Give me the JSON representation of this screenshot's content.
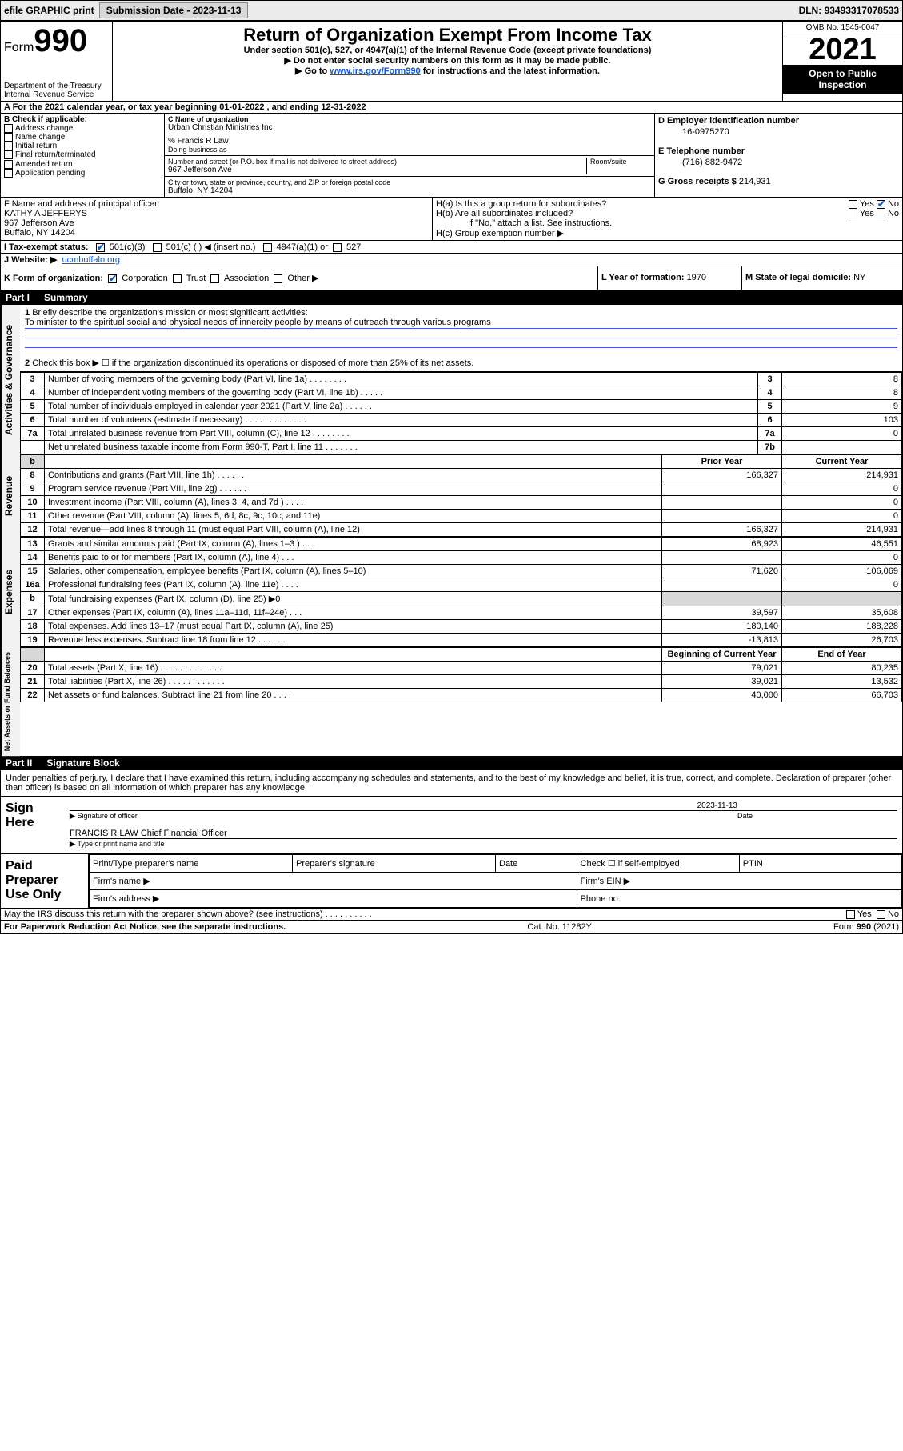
{
  "toolbar": {
    "efile": "efile GRAPHIC print",
    "submission_label": "Submission Date - ",
    "submission_date": "2023-11-13",
    "dln_label": "DLN: ",
    "dln": "93493317078533"
  },
  "header": {
    "form_word": "Form",
    "form_num": "990",
    "title": "Return of Organization Exempt From Income Tax",
    "subtitle": "Under section 501(c), 527, or 4947(a)(1) of the Internal Revenue Code (except private foundations)",
    "note1": "▶ Do not enter social security numbers on this form as it may be made public.",
    "note2_pre": "▶ Go to ",
    "note2_link": "www.irs.gov/Form990",
    "note2_post": " for instructions and the latest information.",
    "dept": "Department of the Treasury",
    "irs": "Internal Revenue Service",
    "omb": "OMB No. 1545-0047",
    "year": "2021",
    "open": "Open to Public Inspection"
  },
  "a_line": "A For the 2021 calendar year, or tax year beginning 01-01-2022   , and ending 12-31-2022",
  "b": {
    "title": "B Check if applicable:",
    "opts": [
      "Address change",
      "Name change",
      "Initial return",
      "Final return/terminated",
      "Amended return",
      "Application pending"
    ]
  },
  "c": {
    "label": "C Name of organization",
    "name": "Urban Christian Ministries Inc",
    "care_of": "% Francis R Law",
    "dba_label": "Doing business as",
    "street_label": "Number and street (or P.O. box if mail is not delivered to street address)",
    "room_label": "Room/suite",
    "street": "967 Jefferson Ave",
    "city_label": "City or town, state or province, country, and ZIP or foreign postal code",
    "city": "Buffalo, NY  14204"
  },
  "d": {
    "label": "D Employer identification number",
    "value": "16-0975270"
  },
  "e": {
    "label": "E Telephone number",
    "value": "(716) 882-9472"
  },
  "g": {
    "label": "G Gross receipts $ ",
    "value": "214,931"
  },
  "f": {
    "label": "F Name and address of principal officer:",
    "name": "KATHY A JEFFERYS",
    "addr1": "967 Jefferson Ave",
    "addr2": "Buffalo, NY  14204"
  },
  "h": {
    "a": "H(a)  Is this a group return for subordinates?",
    "b": "H(b)  Are all subordinates included?",
    "b_note": "If \"No,\" attach a list. See instructions.",
    "c": "H(c)  Group exemption number ▶",
    "yes": "Yes",
    "no": "No"
  },
  "i": {
    "label": "I  Tax-exempt status:",
    "c3": "501(c)(3)",
    "c": "501(c) (   ) ◀ (insert no.)",
    "a1": "4947(a)(1) or",
    "s527": "527"
  },
  "j": {
    "label": "J  Website: ▶",
    "value": "ucmbuffalo.org"
  },
  "k": {
    "label": "K Form of organization:",
    "opts": [
      "Corporation",
      "Trust",
      "Association",
      "Other ▶"
    ]
  },
  "l": {
    "label": "L Year of formation: ",
    "value": "1970"
  },
  "m": {
    "label": "M State of legal domicile: ",
    "value": "NY"
  },
  "part1": {
    "id": "Part I",
    "title": "Summary",
    "q1a": "Briefly describe the organization's mission or most significant activities:",
    "q1b": "To minister to the spiritual social and physical needs of innercity people by means of outreach through various programs",
    "q2": "Check this box ▶ ☐  if the organization discontinued its operations or disposed of more than 25% of its net assets.",
    "vlabel_gov": "Activities & Governance",
    "vlabel_rev": "Revenue",
    "vlabel_exp": "Expenses",
    "vlabel_net": "Net Assets or Fund Balances",
    "rows_gov": [
      {
        "n": "3",
        "t": "Number of voting members of the governing body (Part VI, line 1a)   .   .   .   .   .   .   .   .",
        "c": "3",
        "v": "8"
      },
      {
        "n": "4",
        "t": "Number of independent voting members of the governing body (Part VI, line 1b)   .   .   .   .   .",
        "c": "4",
        "v": "8"
      },
      {
        "n": "5",
        "t": "Total number of individuals employed in calendar year 2021 (Part V, line 2a)   .   .   .   .   .   .",
        "c": "5",
        "v": "9"
      },
      {
        "n": "6",
        "t": "Total number of volunteers (estimate if necessary)   .   .   .   .   .   .   .   .   .   .   .   .   .",
        "c": "6",
        "v": "103"
      },
      {
        "n": "7a",
        "t": "Total unrelated business revenue from Part VIII, column (C), line 12   .   .   .   .   .   .   .   .",
        "c": "7a",
        "v": "0"
      },
      {
        "n": "",
        "t": "Net unrelated business taxable income from Form 990-T, Part I, line 11   .   .   .   .   .   .   .",
        "c": "7b",
        "v": ""
      }
    ],
    "col_prior": "Prior Year",
    "col_curr": "Current Year",
    "rows_rev": [
      {
        "n": "8",
        "t": "Contributions and grants (Part VIII, line 1h)   .   .   .   .   .   .",
        "p": "166,327",
        "c": "214,931"
      },
      {
        "n": "9",
        "t": "Program service revenue (Part VIII, line 2g)   .   .   .   .   .   .",
        "p": "",
        "c": "0"
      },
      {
        "n": "10",
        "t": "Investment income (Part VIII, column (A), lines 3, 4, and 7d )   .   .   .   .",
        "p": "",
        "c": "0"
      },
      {
        "n": "11",
        "t": "Other revenue (Part VIII, column (A), lines 5, 6d, 8c, 9c, 10c, and 11e)",
        "p": "",
        "c": "0"
      },
      {
        "n": "12",
        "t": "Total revenue—add lines 8 through 11 (must equal Part VIII, column (A), line 12)",
        "p": "166,327",
        "c": "214,931"
      }
    ],
    "rows_exp": [
      {
        "n": "13",
        "t": "Grants and similar amounts paid (Part IX, column (A), lines 1–3 )   .   .   .",
        "p": "68,923",
        "c": "46,551"
      },
      {
        "n": "14",
        "t": "Benefits paid to or for members (Part IX, column (A), line 4)   .   .   .",
        "p": "",
        "c": "0"
      },
      {
        "n": "15",
        "t": "Salaries, other compensation, employee benefits (Part IX, column (A), lines 5–10)",
        "p": "71,620",
        "c": "106,069"
      },
      {
        "n": "16a",
        "t": "Professional fundraising fees (Part IX, column (A), line 11e)   .   .   .   .",
        "p": "",
        "c": "0"
      },
      {
        "n": "b",
        "t": "Total fundraising expenses (Part IX, column (D), line 25) ▶0",
        "p": "__grey__",
        "c": "__grey__"
      },
      {
        "n": "17",
        "t": "Other expenses (Part IX, column (A), lines 11a–11d, 11f–24e)   .   .   .",
        "p": "39,597",
        "c": "35,608"
      },
      {
        "n": "18",
        "t": "Total expenses. Add lines 13–17 (must equal Part IX, column (A), line 25)",
        "p": "180,140",
        "c": "188,228"
      },
      {
        "n": "19",
        "t": "Revenue less expenses. Subtract line 18 from line 12   .   .   .   .   .   .",
        "p": "-13,813",
        "c": "26,703"
      }
    ],
    "col_begin": "Beginning of Current Year",
    "col_end": "End of Year",
    "rows_net": [
      {
        "n": "20",
        "t": "Total assets (Part X, line 16)   .   .   .   .   .   .   .   .   .   .   .   .   .",
        "p": "79,021",
        "c": "80,235"
      },
      {
        "n": "21",
        "t": "Total liabilities (Part X, line 26)   .   .   .   .   .   .   .   .   .   .   .   .",
        "p": "39,021",
        "c": "13,532"
      },
      {
        "n": "22",
        "t": "Net assets or fund balances. Subtract line 21 from line 20   .   .   .   .",
        "p": "40,000",
        "c": "66,703"
      }
    ]
  },
  "part2": {
    "id": "Part II",
    "title": "Signature Block",
    "decl": "Under penalties of perjury, I declare that I have examined this return, including accompanying schedules and statements, and to the best of my knowledge and belief, it is true, correct, and complete. Declaration of preparer (other than officer) is based on all information of which preparer has any knowledge.",
    "sign_here": "Sign Here",
    "sig_officer": "Signature of officer",
    "date_label": "Date",
    "sig_date": "2023-11-13",
    "officer_name": "FRANCIS R LAW  Chief Financial Officer",
    "type_name": "Type or print name and title",
    "paid": "Paid Preparer Use Only",
    "prep_name": "Print/Type preparer's name",
    "prep_sig": "Preparer's signature",
    "check_self": "Check ☐ if self-employed",
    "ptin": "PTIN",
    "firm_name": "Firm's name    ▶",
    "firm_ein": "Firm's EIN ▶",
    "firm_addr": "Firm's address ▶",
    "phone": "Phone no.",
    "discuss": "May the IRS discuss this return with the preparer shown above? (see instructions)   .   .   .   .   .   .   .   .   .   .",
    "yes": "Yes",
    "no": "No"
  },
  "footer": {
    "left": "For Paperwork Reduction Act Notice, see the separate instructions.",
    "mid": "Cat. No. 11282Y",
    "right": "Form 990 (2021)"
  }
}
